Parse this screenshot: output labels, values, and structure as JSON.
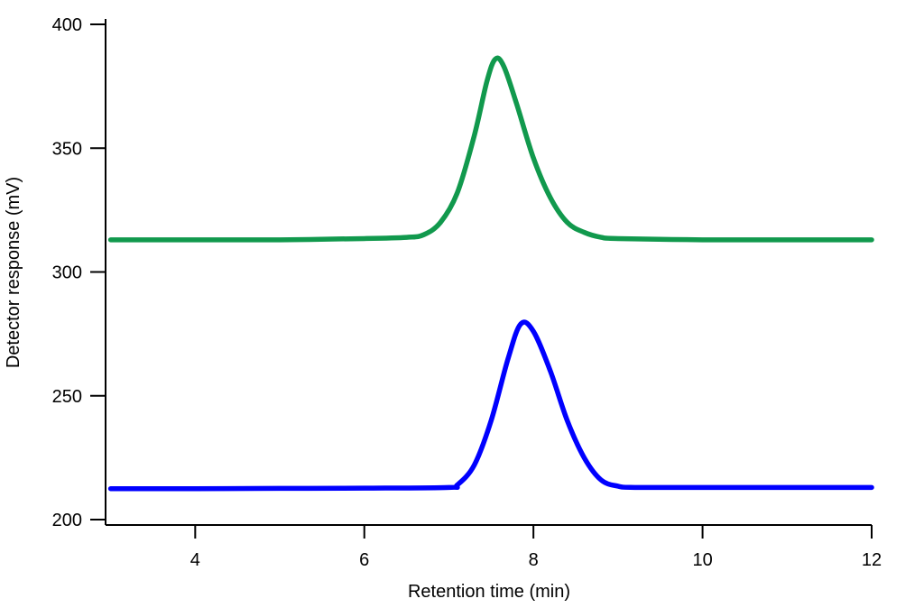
{
  "chart_data": {
    "type": "line",
    "title": "",
    "xlabel": "Retention time (min)",
    "ylabel": "Detector response (mV)",
    "xlim": [
      2.94,
      12
    ],
    "ylim": [
      200,
      400
    ],
    "xticks": [
      4,
      6,
      8,
      10,
      12
    ],
    "yticks": [
      200,
      250,
      300,
      350,
      400
    ],
    "grid": false,
    "legend": "none",
    "series": [
      {
        "name": "green trace",
        "color": "#11994d",
        "x": [
          3,
          4,
          5,
          6,
          6.5,
          6.7,
          6.9,
          7.1,
          7.3,
          7.45,
          7.55,
          7.65,
          7.8,
          8.0,
          8.2,
          8.4,
          8.6,
          8.8,
          9.0,
          10,
          11,
          12
        ],
        "y": [
          313,
          313,
          313,
          313.5,
          314,
          315,
          320,
          332,
          355,
          377,
          386,
          383,
          368,
          346,
          330,
          320,
          316,
          314,
          313.5,
          313,
          313,
          313
        ]
      },
      {
        "name": "blue trace",
        "color": "#0000ff",
        "x": [
          3,
          4,
          5,
          6,
          7.0,
          7.1,
          7.3,
          7.5,
          7.7,
          7.85,
          8.0,
          8.2,
          8.4,
          8.6,
          8.8,
          9.0,
          9.2,
          10,
          11,
          12
        ],
        "y": [
          212.5,
          212.5,
          212.6,
          212.7,
          213,
          214,
          222,
          240,
          265,
          279,
          276,
          260,
          240,
          225,
          216,
          213.5,
          213,
          213,
          213,
          213
        ]
      }
    ]
  }
}
